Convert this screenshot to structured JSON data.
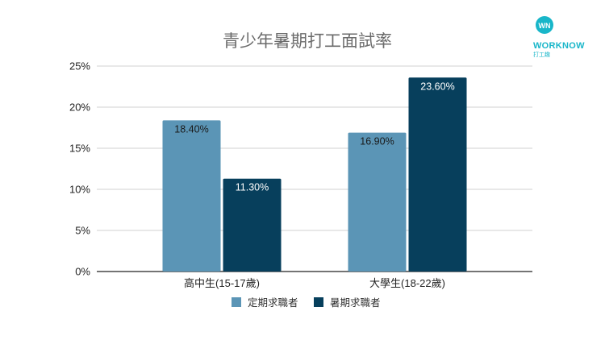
{
  "logo": {
    "mark": "WN",
    "brand": "WORKNOW",
    "sub": "打工趣",
    "color": "#18b6c9"
  },
  "chart_data": {
    "type": "bar",
    "title": "青少年暑期打工面試率",
    "categories": [
      "高中生(15-17歲)",
      "大學生(18-22歲)"
    ],
    "series": [
      {
        "name": "定期求職者",
        "values": [
          18.4,
          16.9
        ],
        "labels": [
          "18.40%",
          "16.90%"
        ],
        "color": "#5b95b6",
        "label_color": "#1a1a1a"
      },
      {
        "name": "暑期求職者",
        "values": [
          11.3,
          23.6
        ],
        "labels": [
          "11.30%",
          "23.60%"
        ],
        "color": "#073f5c",
        "label_color": "#ffffff"
      }
    ],
    "ylim": [
      0,
      25
    ],
    "yticks": [
      0,
      5,
      10,
      15,
      20,
      25
    ],
    "ytick_labels": [
      "0%",
      "5%",
      "10%",
      "15%",
      "20%",
      "25%"
    ],
    "grid": true,
    "legend_position": "bottom"
  }
}
